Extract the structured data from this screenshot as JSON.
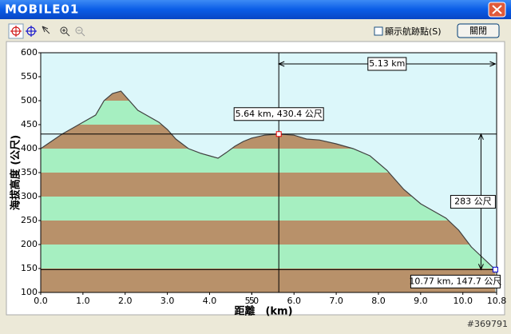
{
  "window": {
    "title": "MOBILE01",
    "checkbox": "顯示航跡點(S)",
    "button": "關閉",
    "watermark": "#369791"
  },
  "chart_data": {
    "type": "line",
    "x_label": "距離　(km)",
    "y_label": "海拔高度 (公尺)",
    "x": [
      0,
      0.5,
      1.0,
      1.3,
      1.5,
      1.7,
      1.9,
      2.0,
      2.3,
      2.5,
      2.8,
      3.0,
      3.2,
      3.5,
      3.8,
      4.0,
      4.2,
      4.4,
      4.6,
      4.8,
      5.0,
      5.3,
      5.64,
      6.0,
      6.3,
      6.6,
      7.0,
      7.4,
      7.8,
      8.2,
      8.6,
      9.0,
      9.3,
      9.6,
      9.9,
      10.2,
      10.5,
      10.77
    ],
    "series": [
      {
        "color": "#404040",
        "values": [
          400,
          430,
          455,
          470,
          500,
          515,
          520,
          510,
          480,
          470,
          455,
          440,
          420,
          400,
          390,
          385,
          380,
          392,
          405,
          415,
          422,
          428,
          430.4,
          428,
          420,
          418,
          410,
          400,
          385,
          355,
          315,
          285,
          270,
          255,
          230,
          195,
          170,
          147.7
        ]
      }
    ],
    "band_colors": [
      "#b8916a",
      "#a6efc1"
    ],
    "xlim": [
      0,
      10.8
    ],
    "xticks": [
      {
        "value": 0,
        "label": "0.0"
      },
      {
        "value": 1,
        "label": "1.0"
      },
      {
        "value": 2,
        "label": "2.0"
      },
      {
        "value": 3,
        "label": "3.0"
      },
      {
        "value": 4,
        "label": "4.0"
      },
      5.0,
      {
        "value": 5,
        "label": "5.0"
      },
      {
        "value": 6,
        "label": "6.0"
      },
      {
        "value": 7,
        "label": "7.0"
      },
      {
        "value": 8,
        "label": "8.0"
      },
      {
        "value": 9,
        "label": "9.0"
      },
      {
        "value": 10,
        "label": "10.0"
      },
      10.8
    ],
    "ylim": [
      100,
      600
    ],
    "yticks": [
      100,
      150,
      200,
      250,
      300,
      350,
      400,
      450,
      500,
      550,
      600
    ],
    "cursor": {
      "x": 5.64,
      "y": 430.4,
      "label": "5.64 km, 430.4 公尺"
    },
    "end": {
      "x": 10.77,
      "y": 147.7,
      "label": "10.77 km, 147.7 公尺"
    },
    "distance": {
      "value": 5.13,
      "label": "5.13 km"
    },
    "climb": {
      "value": 283,
      "label": "283 公尺"
    }
  }
}
